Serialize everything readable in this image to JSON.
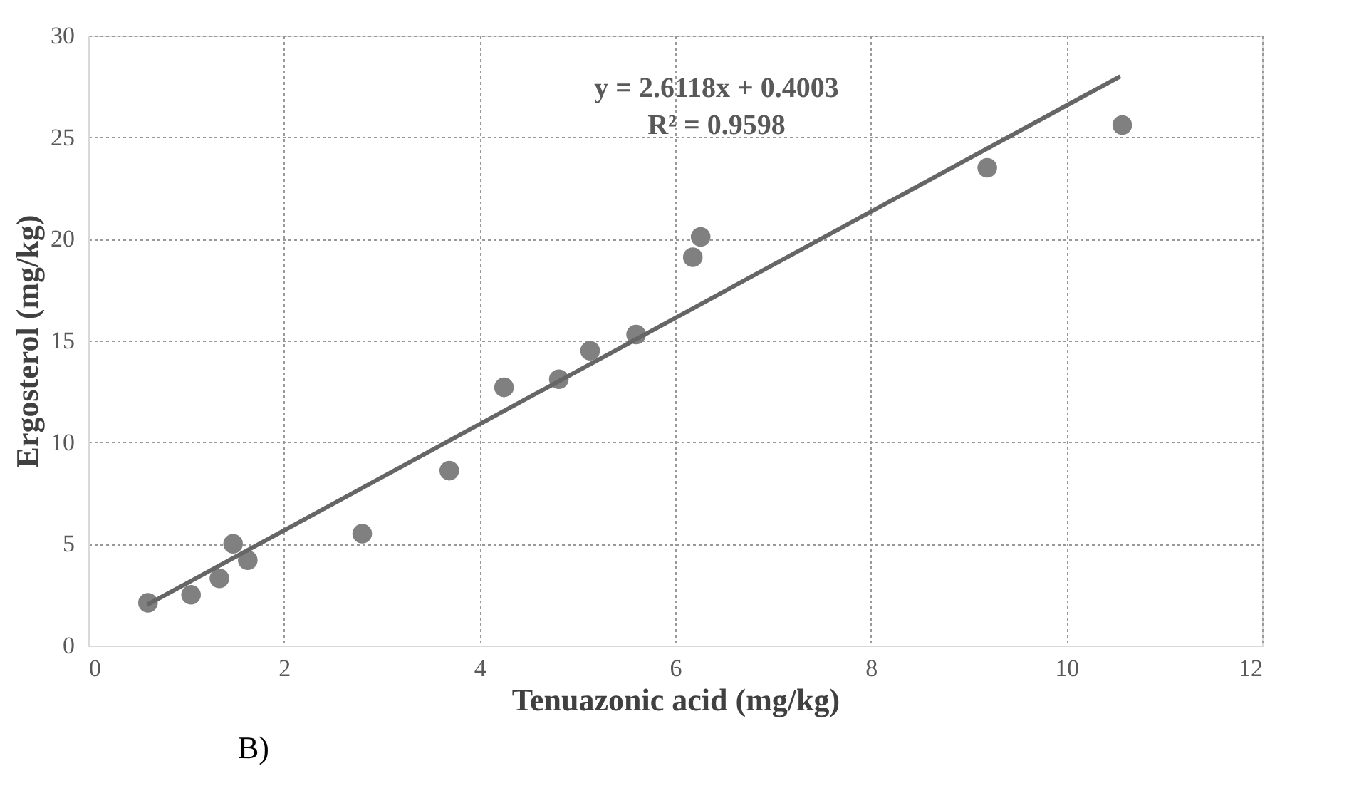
{
  "chart_data": {
    "type": "scatter",
    "xlabel": "Tenuazonic acid (mg/kg)",
    "ylabel": "Ergosterol (mg/kg)",
    "xlim": [
      0,
      12
    ],
    "xticks": [
      0,
      2,
      4,
      6,
      8,
      10,
      12
    ],
    "ylim": [
      0,
      30
    ],
    "yticks": [
      0,
      5,
      10,
      15,
      20,
      25,
      30
    ],
    "grid": true,
    "series": [
      {
        "type": "scatter",
        "marker": "circle",
        "color": "#808080",
        "x": [
          0.61,
          1.05,
          1.34,
          1.48,
          1.63,
          2.8,
          3.69,
          4.25,
          4.81,
          5.13,
          5.6,
          6.18,
          6.26,
          9.19,
          10.57
        ],
        "values": [
          2.1,
          2.5,
          3.3,
          5.0,
          4.2,
          5.5,
          8.6,
          12.7,
          13.1,
          14.5,
          15.3,
          19.1,
          20.1,
          23.5,
          25.6
        ]
      },
      {
        "type": "line",
        "color": "#666666",
        "line_style": "solid",
        "x": [
          0.6,
          10.55
        ],
        "values": [
          2.0,
          28.0
        ]
      }
    ],
    "annotations": [
      "y = 2.6118x + 0.4003",
      "R² = 0.9598",
      "B)"
    ]
  }
}
